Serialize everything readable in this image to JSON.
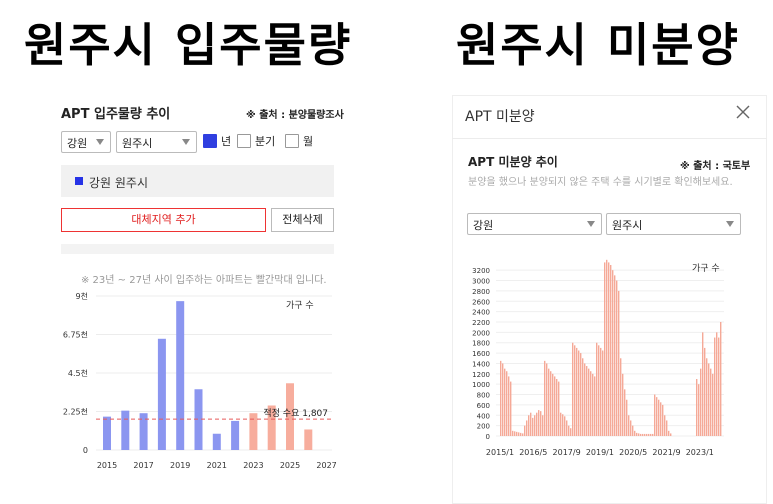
{
  "left": {
    "big_title": "원주시 입주물량",
    "panel_title": "APT 입주물량 추이",
    "source": "※ 출처 : 분양물량조사",
    "region_select": "강원",
    "city_select": "원주시",
    "period_options": [
      "년",
      "분기",
      "월"
    ],
    "selected_region": "강원 원주시",
    "add_button": "대체지역 추가",
    "delete_button": "전체삭제",
    "note": "※ 23년 ~ 27년 사이 입주하는 아파트는 빨간막대 입니다."
  },
  "right": {
    "big_title": "원주시 미분양",
    "header": "APT 미분양",
    "panel_title": "APT 미분양 추이",
    "source": "※ 출처 : 국토부",
    "description": "분양을 했으나 분양되지 않은 주택 수를 시기별로 확인해보세요.",
    "region_select": "강원",
    "city_select": "원주시"
  },
  "colors": {
    "past": "#8b96f0",
    "future": "#f7ad9d",
    "unsold": "#f5a997",
    "accent": "#2f3fe0",
    "danger": "#e02020"
  },
  "icons": {
    "close": "close-icon",
    "dropdown": "chevron-down-icon"
  },
  "chart_data": [
    {
      "type": "bar",
      "ylabel": "가구 수",
      "ylim": [
        0,
        9000
      ],
      "yticks": [
        "0",
        "2.25천",
        "4.5천",
        "6.75천",
        "9천"
      ],
      "xticks": [
        "2015",
        "2017",
        "2019",
        "2021",
        "2023",
        "2025",
        "2027"
      ],
      "categories": [
        "2015",
        "2016",
        "2017",
        "2018",
        "2019",
        "2020",
        "2021",
        "2022",
        "2023",
        "2024",
        "2025",
        "2026"
      ],
      "values": [
        1950,
        2300,
        2150,
        6500,
        8700,
        3550,
        950,
        1700,
        2150,
        2600,
        3900,
        1200
      ],
      "future_from_index": 8,
      "reference_line": {
        "label": "적정 수요 1,807",
        "value": 1807
      }
    },
    {
      "type": "bar",
      "ylabel": "가구 수",
      "ylim": [
        0,
        3300
      ],
      "yticks": [
        "0",
        "200",
        "400",
        "600",
        "800",
        "1000",
        "1200",
        "1400",
        "1600",
        "1800",
        "2000",
        "2200",
        "2400",
        "2600",
        "2800",
        "3000",
        "3200"
      ],
      "xticks": [
        "2015/1",
        "2016/5",
        "2017/9",
        "2019/1",
        "2020/5",
        "2021/9",
        "2023/1"
      ],
      "values": [
        1450,
        1400,
        1300,
        1250,
        1150,
        1050,
        100,
        90,
        80,
        70,
        60,
        50,
        200,
        300,
        400,
        450,
        350,
        400,
        450,
        500,
        480,
        400,
        1450,
        1400,
        1300,
        1250,
        1200,
        1150,
        1100,
        1050,
        450,
        420,
        380,
        300,
        200,
        150,
        1800,
        1750,
        1700,
        1650,
        1600,
        1500,
        1400,
        1350,
        1300,
        1250,
        1200,
        1150,
        1800,
        1750,
        1700,
        1650,
        3350,
        3400,
        3350,
        3300,
        3200,
        3100,
        3000,
        2800,
        1500,
        1200,
        900,
        700,
        400,
        300,
        200,
        100,
        60,
        50,
        40,
        40,
        40,
        40,
        40,
        40,
        40,
        800,
        750,
        700,
        650,
        600,
        400,
        300,
        100,
        50,
        0,
        0,
        0,
        0,
        0,
        0,
        0,
        0,
        0,
        0,
        0,
        0,
        1100,
        1000,
        1300,
        2000,
        1700,
        1500,
        1400,
        1300,
        1200,
        1900,
        2000,
        1900,
        2200
      ]
    }
  ]
}
